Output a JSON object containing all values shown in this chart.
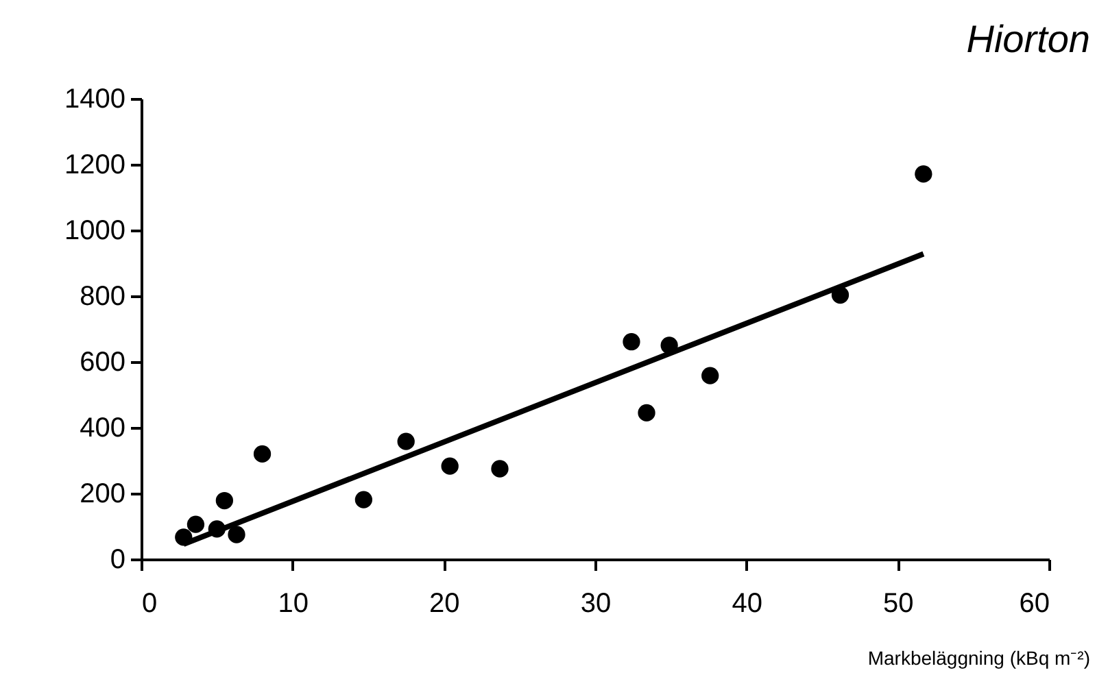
{
  "chart_data": {
    "type": "scatter",
    "title": "Hiorton",
    "xlabel": "Markbeläggning (kBq m⁻²)",
    "xlim": [
      0,
      60
    ],
    "xticks": [
      0,
      10,
      20,
      30,
      40,
      50,
      60
    ],
    "ylim": [
      0,
      1400
    ],
    "yticks": [
      0,
      200,
      400,
      600,
      800,
      1000,
      1200,
      1400
    ],
    "grid": false,
    "series": [
      {
        "color": "#000000",
        "marker": "circle",
        "x": [
          2.8,
          3.6,
          5.0,
          5.5,
          6.3,
          8.0,
          14.7,
          17.5,
          20.4,
          23.7,
          32.4,
          33.4,
          34.9,
          37.6,
          46.2,
          51.7
        ],
        "values": [
          67,
          106,
          92,
          178,
          75,
          320,
          181,
          358,
          283,
          275,
          661,
          445,
          650,
          558,
          803,
          1171
        ]
      },
      {
        "type": "line",
        "color": "#000000",
        "line_style": "solid",
        "x": [
          2.8,
          51.7
        ],
        "values": [
          46,
          928
        ]
      }
    ]
  }
}
